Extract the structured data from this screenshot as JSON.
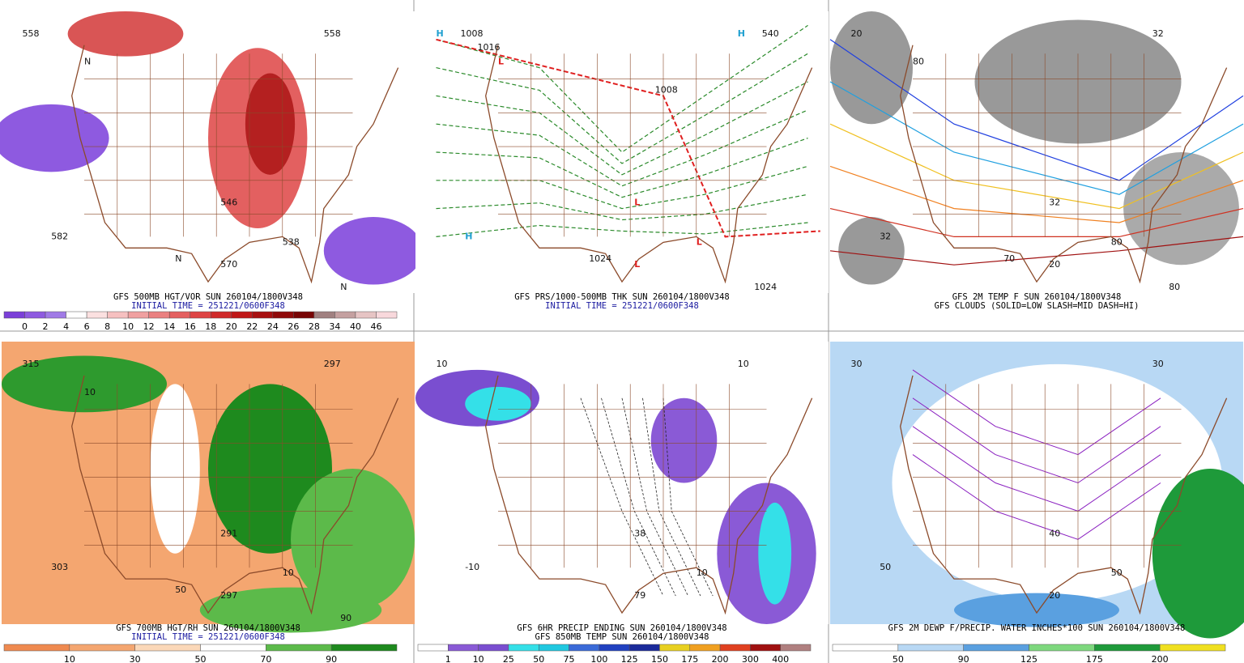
{
  "panels": [
    {
      "captions": [
        {
          "text": "GFS 500MB HGT/VOR SUN 260104/1800V348",
          "color": "#000000"
        },
        {
          "text": "INITIAL TIME = 251221/0600F348",
          "color": "#1a1aa0"
        }
      ],
      "colorbar": {
        "colors": [
          "#7b3fd8",
          "#8e5ae0",
          "#a07ae6",
          "#ffffff",
          "#fbe0e0",
          "#f6c0c0",
          "#f0a0a0",
          "#ea8080",
          "#e46060",
          "#de4444",
          "#d02a2a",
          "#c01818",
          "#a81010",
          "#900a0a",
          "#780505",
          "#a08080",
          "#c4a0a0",
          "#e6c4c4",
          "#f8d8dc"
        ],
        "labels": [
          "0",
          "2",
          "4",
          "6",
          "8",
          "10",
          "12",
          "14",
          "16",
          "18",
          "20",
          "22",
          "24",
          "26",
          "28",
          "34",
          "40",
          "46"
        ]
      },
      "map_labels": [
        "558",
        "558",
        "582",
        "546",
        "570",
        "538",
        "N",
        "N",
        "N"
      ]
    },
    {
      "captions": [
        {
          "text": "GFS PRS/1000-500MB THK SUN 260104/1800V348",
          "color": "#000000"
        },
        {
          "text": "INITIAL TIME = 251221/0600F348",
          "color": "#1a1aa0"
        }
      ],
      "colorbar": null,
      "map_labels": [
        "H",
        "H",
        "H",
        "L",
        "L",
        "L",
        "L",
        "1024",
        "1024",
        "1016",
        "1008",
        "1008",
        "540"
      ]
    },
    {
      "captions": [
        {
          "text": "GFS 2M TEMP F SUN 260104/1800V348",
          "color": "#000000"
        },
        {
          "text": "GFS CLOUDS (SOLID=LOW SLASH=MID DASH=HI)",
          "color": "#000000"
        }
      ],
      "colorbar": null,
      "map_labels": [
        "20",
        "32",
        "32",
        "32",
        "20",
        "80",
        "80",
        "70",
        "80"
      ]
    },
    {
      "captions": [
        {
          "text": "GFS 700MB HGT/RH SUN 260104/1800V348",
          "color": "#000000"
        },
        {
          "text": "INITIAL TIME = 251221/0600F348",
          "color": "#1a1aa0"
        }
      ],
      "colorbar": {
        "colors": [
          "#ef8a50",
          "#f4a670",
          "#fbd8b8",
          "#ffffff",
          "#5cba4a",
          "#1e8a1e"
        ],
        "labels": [
          "10",
          "30",
          "50",
          "70",
          "90"
        ]
      },
      "map_labels": [
        "315",
        "297",
        "303",
        "291",
        "297",
        "10",
        "10",
        "50",
        "90"
      ]
    },
    {
      "captions": [
        {
          "text": "GFS 6HR PRECIP ENDING SUN 260104/1800V348",
          "color": "#000000"
        },
        {
          "text": "GFS 850MB TEMP SUN 260104/1800V348",
          "color": "#000000"
        }
      ],
      "colorbar": {
        "colors": [
          "#ffffff",
          "#8a5ad6",
          "#7a4ed0",
          "#34e0e8",
          "#20c8e0",
          "#3a6ad8",
          "#2040c0",
          "#1a2a9a",
          "#e8d020",
          "#f0a020",
          "#e04020",
          "#a01010",
          "#b08080"
        ],
        "labels": [
          "1",
          "10",
          "25",
          "50",
          "75",
          "100",
          "125",
          "150",
          "175",
          "200",
          "300",
          "400"
        ]
      },
      "map_labels": [
        "10",
        "10",
        "-10",
        "38",
        "79",
        "10"
      ]
    },
    {
      "captions": [
        {
          "text": "GFS 2M DEWP F/PRECIP. WATER INCHES*100 SUN 260104/1800V348",
          "color": "#000000"
        }
      ],
      "colorbar": {
        "colors": [
          "#ffffff",
          "#b8d8f4",
          "#5aa0e0",
          "#7ed87e",
          "#1e9a3a",
          "#f0e020"
        ],
        "labels": [
          "50",
          "90",
          "125",
          "175",
          "200"
        ]
      },
      "map_labels": [
        "30",
        "30",
        "50",
        "40",
        "20",
        "50"
      ]
    }
  ]
}
